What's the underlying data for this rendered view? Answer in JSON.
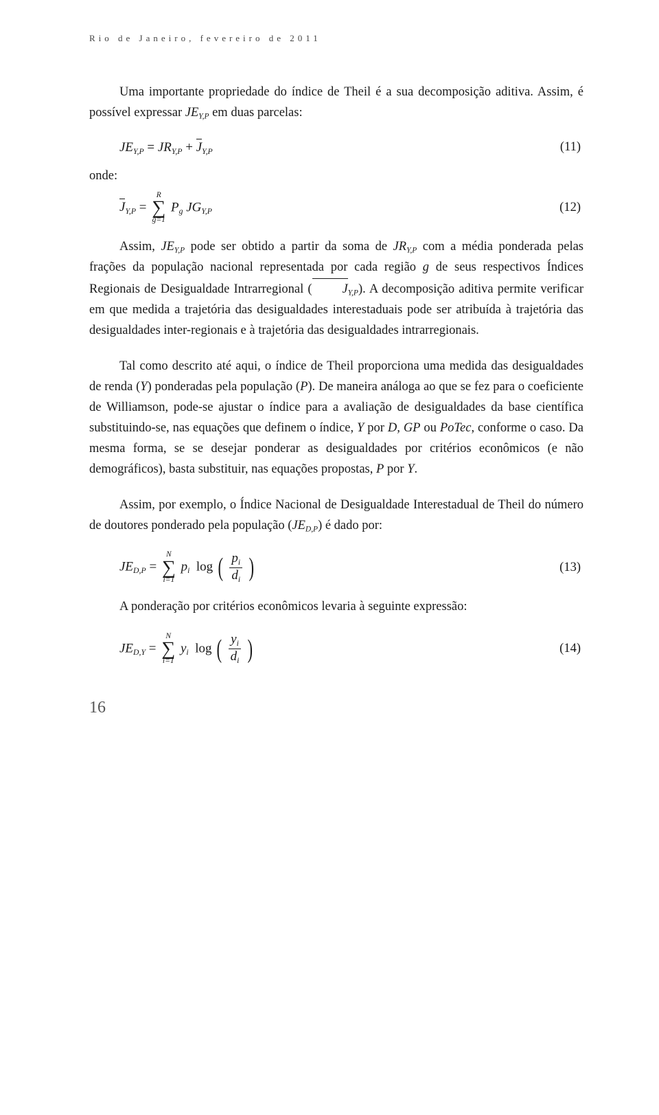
{
  "header": "Rio de Janeiro, fevereiro de 2011",
  "p1": "Uma importante propriedade do índice de Theil é a sua decomposição aditiva. Assim, é possível expressar ",
  "p1_after": " em duas parcelas:",
  "je_yp": "JE",
  "sub_yp": "Y,P",
  "eq11_num": "(11)",
  "onde": "onde:",
  "eq12_num": "(12)",
  "p2_a": "Assim, ",
  "p2_b": " pode ser obtido a partir da soma de ",
  "p2_c": " com a média ponderada pelas frações da população nacional representada por cada região ",
  "p2_d": " de seus respectivos Índices Regionais de Desigualdade Intrarregional (",
  "p2_e": "). A decomposição aditiva permite verificar em que medida a trajetória das desigualdades interestaduais pode ser atribuída à trajetória das desigualdades inter-regionais e à trajetória das desigualdades intrarregionais.",
  "jr": "JR",
  "g_letter": "g",
  "p3_a": "Tal como descrito até aqui, o índice de Theil proporciona uma medida das desigualdades de renda (",
  "p3_b": ") ponderadas pela população (",
  "p3_c": "). De maneira análoga ao que se fez para o coeficiente de Williamson, pode-se ajustar o índice para a avaliação de desigualdades da base científica substituindo-se, nas equações que definem o índice, ",
  "p3_d": " por ",
  "p3_e": " ou ",
  "p3_f": ", conforme o caso. Da mesma forma, se se desejar ponderar as desigualdades por critérios econômicos (e não demográficos), basta substituir, nas equações propostas, ",
  "p3_g": " por ",
  "p3_h": ".",
  "Y": "Y",
  "P": "P",
  "D": "D",
  "GP": "GP",
  "PoTec": "PoTec",
  "p4_a": "Assim, por exemplo, o Índice Nacional de Desigualdade Interestadual de Theil do número de doutores ponderado pela população (",
  "p4_b": ") é dado por:",
  "sub_dp": "D,P",
  "eq13_num": "(13)",
  "p5": "A ponderação por critérios econômicos levaria à seguinte expressão:",
  "sub_dy": "D,Y",
  "eq14_num": "(14)",
  "sum_top_R": "R",
  "sum_top_N": "N",
  "sum_bot_g": "g=1",
  "sum_bot_i": "i=1",
  "J": "J",
  "Pg": "P",
  "JG": "JG",
  "log": "log",
  "pi": "p",
  "di": "d",
  "yi": "y",
  "i": "i",
  "g": "g",
  "eq_eq": " = ",
  "eq_plus": " + ",
  "pagefoot": "16"
}
